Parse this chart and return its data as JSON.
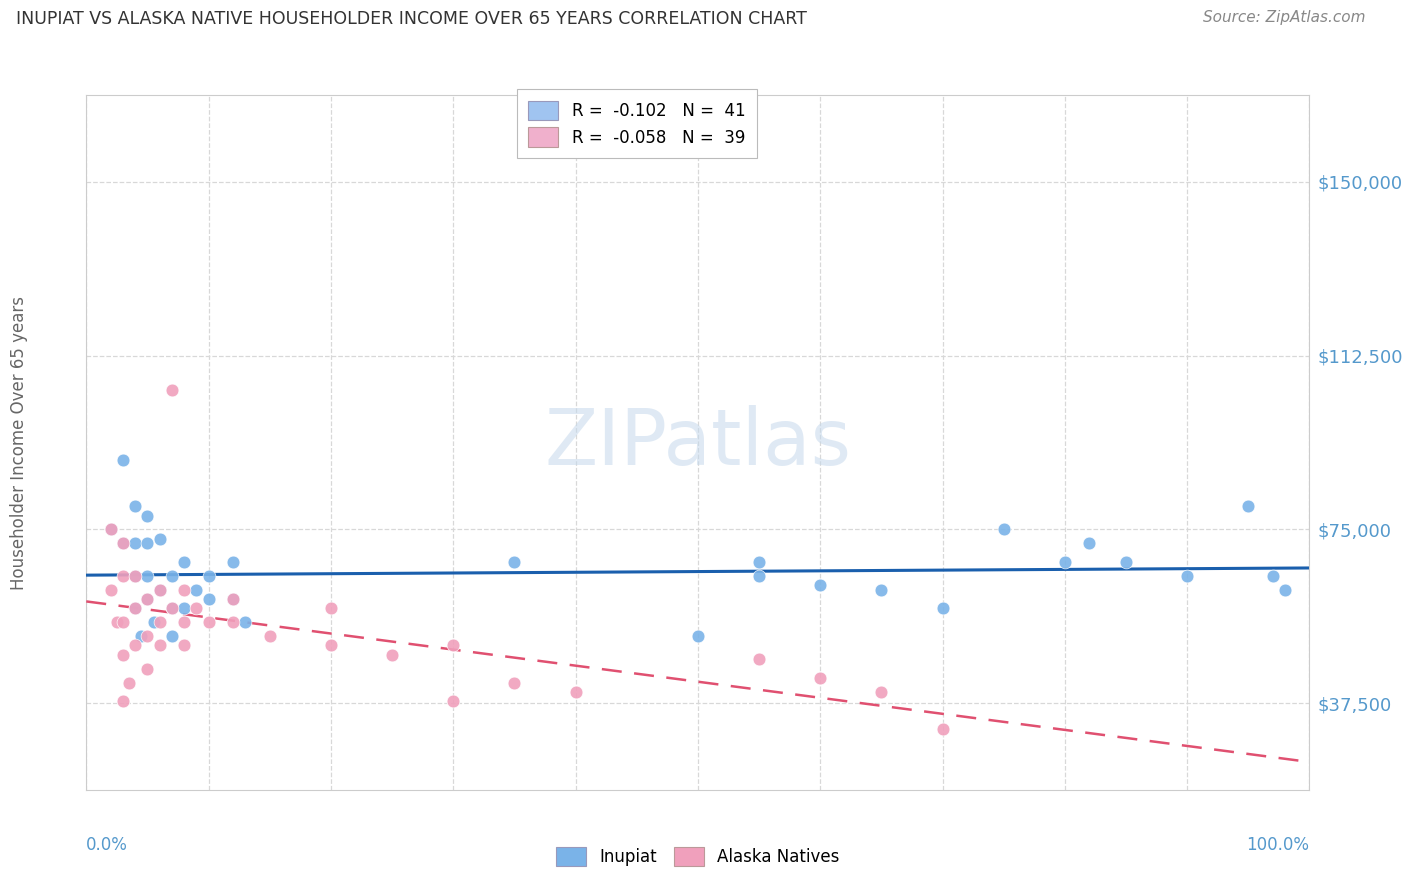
{
  "title": "INUPIAT VS ALASKA NATIVE HOUSEHOLDER INCOME OVER 65 YEARS CORRELATION CHART",
  "source": "Source: ZipAtlas.com",
  "ylabel": "Householder Income Over 65 years",
  "xlim": [
    0.0,
    1.0
  ],
  "ylim": [
    18750,
    168750
  ],
  "yticks": [
    37500,
    75000,
    112500,
    150000
  ],
  "ytick_labels": [
    "$37,500",
    "$75,000",
    "$112,500",
    "$150,000"
  ],
  "legend_r_n": [
    {
      "r": "-0.102",
      "n": "41",
      "color": "#a0c4f0"
    },
    {
      "r": "-0.058",
      "n": "39",
      "color": "#f0b0cc"
    }
  ],
  "watermark": "ZIPatlas",
  "inupiat_color": "#7ab3e8",
  "alaska_color": "#f0a0bc",
  "inupiat_line_color": "#1a5fad",
  "alaska_line_color": "#e05070",
  "inupiat_points": [
    [
      0.02,
      75000
    ],
    [
      0.03,
      90000
    ],
    [
      0.03,
      72000
    ],
    [
      0.04,
      80000
    ],
    [
      0.04,
      72000
    ],
    [
      0.04,
      65000
    ],
    [
      0.04,
      58000
    ],
    [
      0.045,
      52000
    ],
    [
      0.05,
      78000
    ],
    [
      0.05,
      72000
    ],
    [
      0.05,
      65000
    ],
    [
      0.05,
      60000
    ],
    [
      0.055,
      55000
    ],
    [
      0.06,
      73000
    ],
    [
      0.06,
      62000
    ],
    [
      0.07,
      65000
    ],
    [
      0.07,
      58000
    ],
    [
      0.07,
      52000
    ],
    [
      0.08,
      68000
    ],
    [
      0.08,
      58000
    ],
    [
      0.09,
      62000
    ],
    [
      0.1,
      65000
    ],
    [
      0.1,
      60000
    ],
    [
      0.12,
      68000
    ],
    [
      0.12,
      60000
    ],
    [
      0.13,
      55000
    ],
    [
      0.35,
      68000
    ],
    [
      0.5,
      52000
    ],
    [
      0.55,
      68000
    ],
    [
      0.55,
      65000
    ],
    [
      0.6,
      63000
    ],
    [
      0.65,
      62000
    ],
    [
      0.7,
      58000
    ],
    [
      0.75,
      75000
    ],
    [
      0.8,
      68000
    ],
    [
      0.82,
      72000
    ],
    [
      0.85,
      68000
    ],
    [
      0.9,
      65000
    ],
    [
      0.95,
      80000
    ],
    [
      0.97,
      65000
    ],
    [
      0.98,
      62000
    ]
  ],
  "alaska_points": [
    [
      0.02,
      75000
    ],
    [
      0.02,
      62000
    ],
    [
      0.025,
      55000
    ],
    [
      0.03,
      72000
    ],
    [
      0.03,
      65000
    ],
    [
      0.03,
      55000
    ],
    [
      0.03,
      48000
    ],
    [
      0.03,
      38000
    ],
    [
      0.035,
      42000
    ],
    [
      0.04,
      65000
    ],
    [
      0.04,
      58000
    ],
    [
      0.04,
      50000
    ],
    [
      0.05,
      60000
    ],
    [
      0.05,
      52000
    ],
    [
      0.05,
      45000
    ],
    [
      0.06,
      62000
    ],
    [
      0.06,
      55000
    ],
    [
      0.06,
      50000
    ],
    [
      0.07,
      105000
    ],
    [
      0.07,
      58000
    ],
    [
      0.08,
      62000
    ],
    [
      0.08,
      55000
    ],
    [
      0.08,
      50000
    ],
    [
      0.09,
      58000
    ],
    [
      0.1,
      55000
    ],
    [
      0.12,
      60000
    ],
    [
      0.12,
      55000
    ],
    [
      0.15,
      52000
    ],
    [
      0.2,
      58000
    ],
    [
      0.2,
      50000
    ],
    [
      0.25,
      48000
    ],
    [
      0.3,
      50000
    ],
    [
      0.3,
      38000
    ],
    [
      0.35,
      42000
    ],
    [
      0.4,
      40000
    ],
    [
      0.55,
      47000
    ],
    [
      0.6,
      43000
    ],
    [
      0.65,
      40000
    ],
    [
      0.7,
      32000
    ]
  ],
  "background_color": "#ffffff",
  "grid_color": "#d8d8d8",
  "title_color": "#333333",
  "tick_label_color": "#5599cc",
  "source_color": "#888888",
  "ylabel_color": "#666666"
}
